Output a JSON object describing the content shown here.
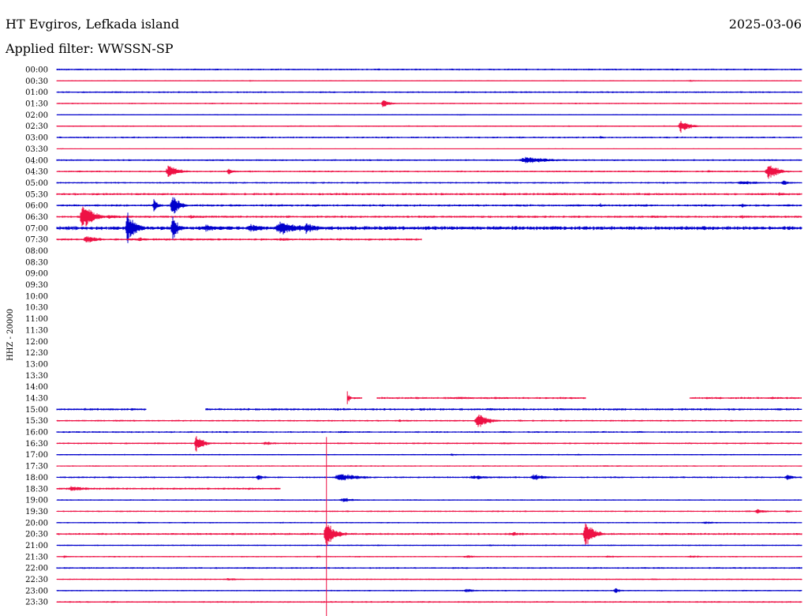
{
  "header": {
    "station": "HT Evgiros, Lefkada island",
    "date": "2025-03-06",
    "filter": "Applied filter: WWSSN-SP"
  },
  "chart_data": {
    "type": "line",
    "title": "HT Evgiros, Lefkada island",
    "ylabel": "HHZ - 20000",
    "colors": [
      "#0000cc",
      "#ee1144"
    ],
    "rows": [
      {
        "label": "00:00",
        "end": 1.0,
        "noise": 1.0,
        "events": [
          [
            0.12,
            1.2,
            0.02
          ]
        ]
      },
      {
        "label": "00:30",
        "end": 1.0,
        "noise": 0.6,
        "events": [
          [
            0.26,
            1.2,
            0.01
          ],
          [
            0.68,
            1.0,
            0.01
          ],
          [
            0.85,
            1.6,
            0.02
          ]
        ]
      },
      {
        "label": "01:00",
        "end": 1.0,
        "noise": 1.0,
        "events": []
      },
      {
        "label": "01:30",
        "end": 1.0,
        "noise": 0.8,
        "events": [
          [
            0.438,
            7,
            0.008
          ]
        ]
      },
      {
        "label": "02:00",
        "end": 1.0,
        "noise": 0.6,
        "events": [
          [
            0.54,
            1.2,
            0.02
          ]
        ]
      },
      {
        "label": "02:30",
        "end": 1.0,
        "noise": 0.8,
        "events": [
          [
            0.838,
            9,
            0.012
          ]
        ]
      },
      {
        "label": "03:00",
        "end": 1.0,
        "noise": 1.0,
        "events": [
          [
            0.28,
            1.2,
            0.01
          ],
          [
            0.73,
            2.5,
            0.006
          ]
        ]
      },
      {
        "label": "03:30",
        "end": 1.0,
        "noise": 0.5,
        "events": [
          [
            0.005,
            1.5,
            0.005
          ]
        ]
      },
      {
        "label": "04:00",
        "end": 1.0,
        "noise": 1.0,
        "events": [
          [
            0.63,
            5,
            0.035
          ],
          [
            0.95,
            1.5,
            0.01
          ]
        ]
      },
      {
        "label": "04:30",
        "end": 1.0,
        "noise": 1.0,
        "events": [
          [
            0.03,
            2,
            0.01
          ],
          [
            0.15,
            10,
            0.012
          ],
          [
            0.23,
            4,
            0.01
          ],
          [
            0.83,
            2,
            0.01
          ],
          [
            0.875,
            2,
            0.01
          ],
          [
            0.955,
            12,
            0.012
          ]
        ]
      },
      {
        "label": "05:00",
        "end": 1.0,
        "noise": 1.0,
        "events": [
          [
            0.58,
            1.5,
            0.02
          ],
          [
            0.92,
            3,
            0.03
          ],
          [
            0.975,
            4,
            0.01
          ]
        ]
      },
      {
        "label": "05:30",
        "end": 1.0,
        "noise": 1.3,
        "events": [
          [
            0.2,
            1.5,
            0.02
          ],
          [
            0.35,
            1.5,
            0.01
          ],
          [
            0.6,
            3,
            0.01
          ],
          [
            0.66,
            2,
            0.03
          ],
          [
            0.97,
            3,
            0.01
          ]
        ]
      },
      {
        "label": "06:00",
        "end": 1.0,
        "noise": 1.3,
        "events": [
          [
            0.13,
            9,
            0.006
          ],
          [
            0.155,
            18,
            0.008
          ],
          [
            0.42,
            2,
            0.005
          ],
          [
            0.73,
            3,
            0.006
          ],
          [
            0.79,
            2,
            0.01
          ],
          [
            0.92,
            4,
            0.006
          ],
          [
            0.98,
            2,
            0.01
          ]
        ]
      },
      {
        "label": "06:30",
        "end": 1.0,
        "noise": 1.3,
        "events": [
          [
            0.035,
            20,
            0.012
          ],
          [
            0.07,
            3,
            0.02
          ],
          [
            0.095,
            3,
            0.01
          ],
          [
            0.18,
            3,
            0.02
          ],
          [
            0.31,
            2,
            0.01
          ],
          [
            0.34,
            1.5,
            0.02
          ],
          [
            0.62,
            3,
            0.004
          ],
          [
            0.8,
            2,
            0.02
          ],
          [
            0.92,
            3,
            0.01
          ]
        ]
      },
      {
        "label": "07:00",
        "end": 1.0,
        "noise": 2.2,
        "events": [
          [
            0.095,
            22,
            0.01
          ],
          [
            0.155,
            22,
            0.006
          ],
          [
            0.2,
            5,
            0.03
          ],
          [
            0.26,
            6,
            0.02
          ],
          [
            0.3,
            10,
            0.025
          ],
          [
            0.335,
            8,
            0.015
          ],
          [
            0.4,
            2,
            0.3
          ]
        ]
      },
      {
        "label": "07:30",
        "end": 0.49,
        "noise": 1.3,
        "events": [
          [
            0.04,
            6,
            0.015
          ],
          [
            0.11,
            3,
            0.02
          ],
          [
            0.18,
            2,
            0.03
          ],
          [
            0.3,
            2,
            0.04
          ]
        ]
      },
      {
        "label": "08:00",
        "end": 0,
        "noise": 0,
        "events": []
      },
      {
        "label": "08:30",
        "end": 0,
        "noise": 0,
        "events": []
      },
      {
        "label": "09:00",
        "end": 0,
        "noise": 0,
        "events": []
      },
      {
        "label": "09:30",
        "end": 0,
        "noise": 0,
        "events": []
      },
      {
        "label": "10:00",
        "end": 0,
        "noise": 0,
        "events": []
      },
      {
        "label": "10:30",
        "end": 0,
        "noise": 0,
        "events": []
      },
      {
        "label": "11:00",
        "end": 0,
        "noise": 0,
        "events": []
      },
      {
        "label": "11:30",
        "end": 0,
        "noise": 0,
        "events": []
      },
      {
        "label": "12:00",
        "end": 0,
        "noise": 0,
        "events": []
      },
      {
        "label": "12:30",
        "end": 0,
        "noise": 0,
        "events": []
      },
      {
        "label": "13:00",
        "end": 0,
        "noise": 0,
        "events": []
      },
      {
        "label": "13:30",
        "end": 0,
        "noise": 0,
        "events": []
      },
      {
        "label": "14:00",
        "end": 0,
        "noise": 0,
        "events": []
      },
      {
        "label": "14:30",
        "segments": [
          [
            0.39,
            0.41
          ],
          [
            0.43,
            0.71
          ],
          [
            0.85,
            1.0
          ]
        ],
        "noise": 1.2,
        "events": [
          [
            0.39,
            10,
            0.003
          ],
          [
            0.54,
            2,
            0.04
          ],
          [
            0.69,
            1.5,
            0.02
          ],
          [
            0.96,
            2,
            0.02
          ]
        ]
      },
      {
        "label": "15:00",
        "segments": [
          [
            0.0,
            0.12
          ],
          [
            0.2,
            1.0
          ]
        ],
        "noise": 1.3,
        "events": [
          [
            0.07,
            2,
            0.01
          ],
          [
            0.1,
            1.5,
            0.01
          ],
          [
            0.49,
            2,
            0.02
          ],
          [
            0.58,
            2,
            0.02
          ],
          [
            0.75,
            2,
            0.01
          ]
        ]
      },
      {
        "label": "15:30",
        "end": 1.0,
        "noise": 1.0,
        "events": [
          [
            0.08,
            2,
            0.01
          ],
          [
            0.46,
            2,
            0.01
          ],
          [
            0.565,
            12,
            0.012
          ],
          [
            0.62,
            2,
            0.01
          ],
          [
            0.78,
            1.5,
            0.01
          ]
        ]
      },
      {
        "label": "16:00",
        "end": 1.0,
        "noise": 1.0,
        "events": [
          [
            0.38,
            1.5,
            0.02
          ],
          [
            0.6,
            1.5,
            0.01
          ]
        ]
      },
      {
        "label": "16:30",
        "end": 1.0,
        "noise": 1.0,
        "events": [
          [
            0.187,
            14,
            0.008
          ],
          [
            0.28,
            3,
            0.015
          ],
          [
            0.6,
            1.5,
            0.03
          ],
          [
            0.78,
            1.5,
            0.02
          ]
        ]
      },
      {
        "label": "17:00",
        "end": 1.0,
        "noise": 0.8,
        "events": [
          [
            0.53,
            2,
            0.01
          ],
          [
            0.7,
            1.2,
            0.02
          ]
        ]
      },
      {
        "label": "17:30",
        "end": 1.0,
        "noise": 0.8,
        "events": []
      },
      {
        "label": "18:00",
        "end": 1.0,
        "noise": 1.0,
        "events": [
          [
            0.07,
            2,
            0.006
          ],
          [
            0.23,
            2,
            0.004
          ],
          [
            0.27,
            5,
            0.008
          ],
          [
            0.38,
            6,
            0.025
          ],
          [
            0.56,
            3,
            0.03
          ],
          [
            0.64,
            5,
            0.015
          ],
          [
            0.98,
            5,
            0.008
          ]
        ]
      },
      {
        "label": "18:30",
        "end": 0.3,
        "noise": 1.2,
        "events": [
          [
            0.02,
            4,
            0.02
          ],
          [
            0.3,
            1.5,
            0.04
          ]
        ]
      },
      {
        "label": "19:00",
        "end": 1.0,
        "noise": 0.8,
        "events": [
          [
            0.385,
            3,
            0.02
          ]
        ]
      },
      {
        "label": "19:30",
        "end": 1.0,
        "noise": 0.9,
        "events": [
          [
            0.94,
            3,
            0.015
          ],
          [
            0.98,
            2,
            0.01
          ]
        ]
      },
      {
        "label": "20:00",
        "end": 1.0,
        "noise": 0.8,
        "events": [
          [
            0.11,
            1.5,
            0.02
          ],
          [
            0.87,
            2,
            0.02
          ]
        ]
      },
      {
        "label": "20:30",
        "end": 1.0,
        "noise": 1.2,
        "events": [
          [
            0.362,
            22,
            0.01
          ],
          [
            0.61,
            3,
            0.02
          ],
          [
            0.71,
            18,
            0.01
          ]
        ]
      },
      {
        "label": "21:00",
        "end": 1.0,
        "noise": 0.8,
        "events": [
          [
            0.43,
            1.5,
            0.01
          ],
          [
            0.58,
            1.5,
            0.02
          ]
        ]
      },
      {
        "label": "21:30",
        "end": 1.0,
        "noise": 0.8,
        "events": [
          [
            0.01,
            2,
            0.01
          ],
          [
            0.35,
            2,
            0.006
          ],
          [
            0.55,
            2,
            0.02
          ],
          [
            0.74,
            2,
            0.02
          ],
          [
            0.85,
            2,
            0.02
          ]
        ]
      },
      {
        "label": "22:00",
        "end": 1.0,
        "noise": 1.0,
        "events": []
      },
      {
        "label": "22:30",
        "end": 1.0,
        "noise": 0.8,
        "events": [
          [
            0.23,
            2,
            0.02
          ],
          [
            0.8,
            2,
            0.01
          ]
        ]
      },
      {
        "label": "23:00",
        "end": 1.0,
        "noise": 0.8,
        "events": [
          [
            0.11,
            1.5,
            0.005
          ],
          [
            0.55,
            3,
            0.015
          ],
          [
            0.75,
            4,
            0.008
          ]
        ]
      },
      {
        "label": "23:30",
        "end": 1.0,
        "noise": 1.0,
        "events": []
      }
    ],
    "marker": {
      "x": 0.362,
      "from_row": "16:30",
      "to_row": "23:30"
    }
  }
}
